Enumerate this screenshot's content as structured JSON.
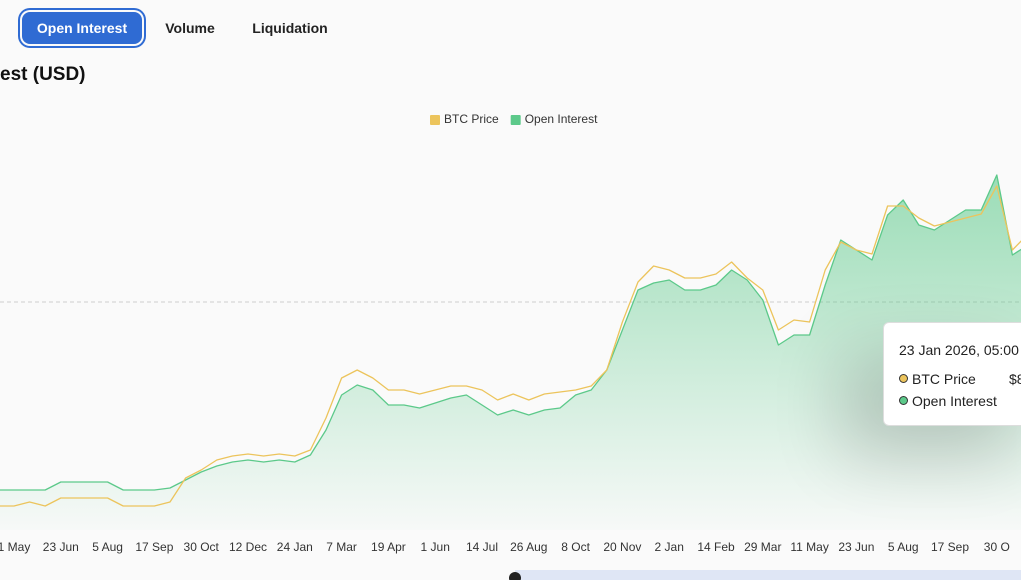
{
  "tabs": [
    "Open Interest",
    "Volume",
    "Liquidation"
  ],
  "chart_data": {
    "type": "line",
    "title": "est (USD)",
    "categories": [
      null,
      "1 May",
      null,
      null,
      "23 Jun",
      null,
      null,
      "5 Aug",
      null,
      null,
      "17 Sep",
      null,
      null,
      "30 Oct",
      null,
      null,
      "12 Dec",
      null,
      null,
      "24 Jan",
      null,
      null,
      "7 Mar",
      null,
      null,
      "19 Apr",
      null,
      null,
      "1 Jun",
      null,
      null,
      "14 Jul",
      null,
      null,
      "26 Aug",
      null,
      null,
      "8 Oct",
      null,
      null,
      "20 Nov",
      null,
      null,
      "2 Jan",
      null,
      null,
      "14 Feb",
      null,
      null,
      "29 Mar",
      null,
      null,
      "11 May",
      null,
      null,
      "23 Jun",
      null,
      null,
      "5 Aug",
      null,
      null,
      "17 Sep",
      null,
      null,
      "30 O",
      null,
      null
    ],
    "series": [
      {
        "name": "BTC Price",
        "color": "#ecc45c",
        "values": [
          6,
          6,
          7,
          6,
          8,
          8,
          8,
          8,
          6,
          6,
          6,
          7,
          13,
          15,
          17.5,
          18.5,
          19,
          18.5,
          19,
          18.5,
          20,
          28,
          38,
          40,
          38,
          35,
          35,
          34,
          35,
          36,
          36,
          35,
          32.5,
          34,
          32.5,
          34,
          34.5,
          35,
          36,
          40,
          52,
          62,
          66,
          65,
          63,
          63,
          64,
          67,
          63,
          60,
          50,
          52.5,
          52,
          65,
          72,
          70,
          69,
          81,
          81,
          78,
          76,
          77,
          78,
          79,
          86,
          70,
          74
        ]
      },
      {
        "name": "Open Interest",
        "color": "#5cc98a",
        "values": [
          10,
          10,
          10,
          10,
          12,
          12,
          12,
          12,
          10,
          10,
          10,
          10.5,
          12.5,
          14.5,
          16,
          17,
          17.5,
          17,
          17.5,
          17,
          18.75,
          25,
          33.75,
          36.25,
          35,
          31.25,
          31.25,
          30.5,
          31.75,
          33,
          33.75,
          31.25,
          28.75,
          30,
          28.75,
          30,
          30.5,
          33.75,
          35,
          40,
          50,
          60,
          61.75,
          62.5,
          60,
          60,
          61.25,
          65,
          62.5,
          57.5,
          46.25,
          48.75,
          48.75,
          61.25,
          72.5,
          70,
          67.5,
          78.75,
          82.5,
          76.25,
          75,
          77.5,
          80,
          80,
          88.75,
          68.75,
          71.25
        ]
      }
    ],
    "ylim": [
      0,
      100
    ],
    "legend": "top"
  },
  "tooltip": {
    "title": "23 Jan 2026, 05:00",
    "items": [
      {
        "name": "BTC Price",
        "value": "$8"
      },
      {
        "name": "Open Interest"
      }
    ]
  }
}
